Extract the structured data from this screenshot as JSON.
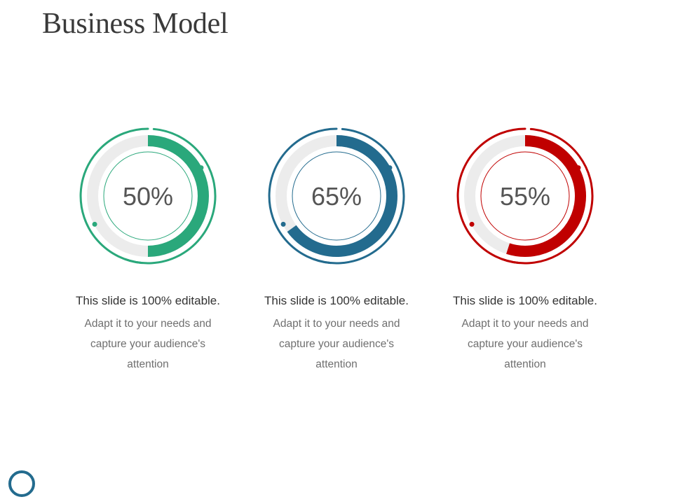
{
  "title": "Business Model",
  "chart_data": {
    "type": "donut",
    "items": [
      {
        "value": 50,
        "label": "50%",
        "heading": "This slide is 100% editable.",
        "description": "Adapt it to your needs and capture your audience's attention",
        "color": "#2aa87b"
      },
      {
        "value": 65,
        "label": "65%",
        "heading": "This slide is 100% editable.",
        "description": "Adapt it to your needs and capture your audience's attention",
        "color": "#236b8e"
      },
      {
        "value": 55,
        "label": "55%",
        "heading": "This slide is 100% editable.",
        "description": "Adapt it to your needs and capture your audience's attention",
        "color": "#c00000"
      }
    ]
  },
  "track_color": "#ececec",
  "logo_color": "#236b8e"
}
